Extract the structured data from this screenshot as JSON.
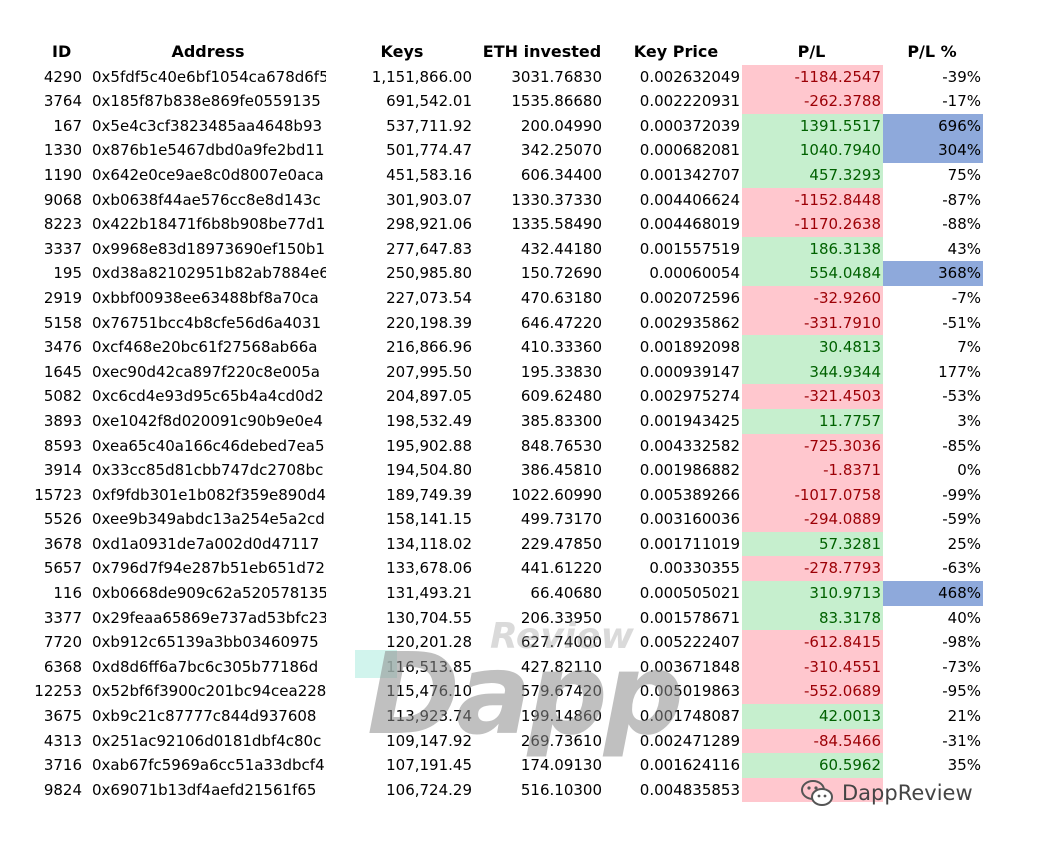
{
  "headers": {
    "id": "ID",
    "address": "Address",
    "keys": "Keys",
    "eth": "ETH invested",
    "price": "Key Price",
    "pl": "P/L",
    "plpct": "P/L %"
  },
  "rows": [
    {
      "id": "4290",
      "address": "0x5fdf5c40e6bf1054ca678d6f5",
      "keys": "1,151,866.00",
      "eth": "3031.76830",
      "price": "0.002632049",
      "pl": "-1184.2547",
      "pct": "-39%",
      "pl_sign": "neg",
      "pct_hi": false
    },
    {
      "id": "3764",
      "address": "0x185f87b838e869fe0559135",
      "keys": "691,542.01",
      "eth": "1535.86680",
      "price": "0.002220931",
      "pl": "-262.3788",
      "pct": "-17%",
      "pl_sign": "neg",
      "pct_hi": false
    },
    {
      "id": "167",
      "address": "0x5e4c3cf3823485aa4648b93",
      "keys": "537,711.92",
      "eth": "200.04990",
      "price": "0.000372039",
      "pl": "1391.5517",
      "pct": "696%",
      "pl_sign": "pos",
      "pct_hi": true
    },
    {
      "id": "1330",
      "address": "0x876b1e5467dbd0a9fe2bd11",
      "keys": "501,774.47",
      "eth": "342.25070",
      "price": "0.000682081",
      "pl": "1040.7940",
      "pct": "304%",
      "pl_sign": "pos",
      "pct_hi": true
    },
    {
      "id": "1190",
      "address": "0x642e0ce9ae8c0d8007e0aca",
      "keys": "451,583.16",
      "eth": "606.34400",
      "price": "0.001342707",
      "pl": "457.3293",
      "pct": "75%",
      "pl_sign": "pos",
      "pct_hi": false
    },
    {
      "id": "9068",
      "address": "0xb0638f44ae576cc8e8d143c",
      "keys": "301,903.07",
      "eth": "1330.37330",
      "price": "0.004406624",
      "pl": "-1152.8448",
      "pct": "-87%",
      "pl_sign": "neg",
      "pct_hi": false
    },
    {
      "id": "8223",
      "address": "0x422b18471f6b8b908be77d1",
      "keys": "298,921.06",
      "eth": "1335.58490",
      "price": "0.004468019",
      "pl": "-1170.2638",
      "pct": "-88%",
      "pl_sign": "neg",
      "pct_hi": false
    },
    {
      "id": "3337",
      "address": "0x9968e83d18973690ef150b1",
      "keys": "277,647.83",
      "eth": "432.44180",
      "price": "0.001557519",
      "pl": "186.3138",
      "pct": "43%",
      "pl_sign": "pos",
      "pct_hi": false
    },
    {
      "id": "195",
      "address": "0xd38a82102951b82ab7884e6",
      "keys": "250,985.80",
      "eth": "150.72690",
      "price": "0.00060054",
      "pl": "554.0484",
      "pct": "368%",
      "pl_sign": "pos",
      "pct_hi": true
    },
    {
      "id": "2919",
      "address": "0xbbf00938ee63488bf8a70ca",
      "keys": "227,073.54",
      "eth": "470.63180",
      "price": "0.002072596",
      "pl": "-32.9260",
      "pct": "-7%",
      "pl_sign": "neg",
      "pct_hi": false
    },
    {
      "id": "5158",
      "address": "0x76751bcc4b8cfe56d6a4031",
      "keys": "220,198.39",
      "eth": "646.47220",
      "price": "0.002935862",
      "pl": "-331.7910",
      "pct": "-51%",
      "pl_sign": "neg",
      "pct_hi": false
    },
    {
      "id": "3476",
      "address": "0xcf468e20bc61f27568ab66a",
      "keys": "216,866.96",
      "eth": "410.33360",
      "price": "0.001892098",
      "pl": "30.4813",
      "pct": "7%",
      "pl_sign": "pos",
      "pct_hi": false
    },
    {
      "id": "1645",
      "address": "0xec90d42ca897f220c8e005a",
      "keys": "207,995.50",
      "eth": "195.33830",
      "price": "0.000939147",
      "pl": "344.9344",
      "pct": "177%",
      "pl_sign": "pos",
      "pct_hi": false
    },
    {
      "id": "5082",
      "address": "0xc6cd4e93d95c65b4a4cd0d2",
      "keys": "204,897.05",
      "eth": "609.62480",
      "price": "0.002975274",
      "pl": "-321.4503",
      "pct": "-53%",
      "pl_sign": "neg",
      "pct_hi": false
    },
    {
      "id": "3893",
      "address": "0xe1042f8d020091c90b9e0e4",
      "keys": "198,532.49",
      "eth": "385.83300",
      "price": "0.001943425",
      "pl": "11.7757",
      "pct": "3%",
      "pl_sign": "pos",
      "pct_hi": false
    },
    {
      "id": "8593",
      "address": "0xea65c40a166c46debed7ea5",
      "keys": "195,902.88",
      "eth": "848.76530",
      "price": "0.004332582",
      "pl": "-725.3036",
      "pct": "-85%",
      "pl_sign": "neg",
      "pct_hi": false
    },
    {
      "id": "3914",
      "address": "0x33cc85d81cbb747dc2708bc",
      "keys": "194,504.80",
      "eth": "386.45810",
      "price": "0.001986882",
      "pl": "-1.8371",
      "pct": "0%",
      "pl_sign": "neg",
      "pct_hi": false
    },
    {
      "id": "15723",
      "address": "0xf9fdb301e1b082f359e890d4",
      "keys": "189,749.39",
      "eth": "1022.60990",
      "price": "0.005389266",
      "pl": "-1017.0758",
      "pct": "-99%",
      "pl_sign": "neg",
      "pct_hi": false
    },
    {
      "id": "5526",
      "address": "0xee9b349abdc13a254e5a2cd",
      "keys": "158,141.15",
      "eth": "499.73170",
      "price": "0.003160036",
      "pl": "-294.0889",
      "pct": "-59%",
      "pl_sign": "neg",
      "pct_hi": false
    },
    {
      "id": "3678",
      "address": "0xd1a0931de7a002d0d47117",
      "keys": "134,118.02",
      "eth": "229.47850",
      "price": "0.001711019",
      "pl": "57.3281",
      "pct": "25%",
      "pl_sign": "pos",
      "pct_hi": false
    },
    {
      "id": "5657",
      "address": "0x796d7f94e287b51eb651d72",
      "keys": "133,678.06",
      "eth": "441.61220",
      "price": "0.00330355",
      "pl": "-278.7793",
      "pct": "-63%",
      "pl_sign": "neg",
      "pct_hi": false
    },
    {
      "id": "116",
      "address": "0xb0668de909c62a520578135",
      "keys": "131,493.21",
      "eth": "66.40680",
      "price": "0.000505021",
      "pl": "310.9713",
      "pct": "468%",
      "pl_sign": "pos",
      "pct_hi": true
    },
    {
      "id": "3377",
      "address": "0x29feaa65869e737ad53bfc23",
      "keys": "130,704.55",
      "eth": "206.33950",
      "price": "0.001578671",
      "pl": "83.3178",
      "pct": "40%",
      "pl_sign": "pos",
      "pct_hi": false
    },
    {
      "id": "7720",
      "address": "0xb912c65139a3bb03460975",
      "keys": "120,201.28",
      "eth": "627.74000",
      "price": "0.005222407",
      "pl": "-612.8415",
      "pct": "-98%",
      "pl_sign": "neg",
      "pct_hi": false
    },
    {
      "id": "6368",
      "address": "0xd8d6ff6a7bc6c305b77186d",
      "keys": "116,513.85",
      "eth": "427.82110",
      "price": "0.003671848",
      "pl": "-310.4551",
      "pct": "-73%",
      "pl_sign": "neg",
      "pct_hi": false
    },
    {
      "id": "12253",
      "address": "0x52bf6f3900c201bc94cea228",
      "keys": "115,476.10",
      "eth": "579.67420",
      "price": "0.005019863",
      "pl": "-552.0689",
      "pct": "-95%",
      "pl_sign": "neg",
      "pct_hi": false
    },
    {
      "id": "3675",
      "address": "0xb9c21c87777c844d937608",
      "keys": "113,923.74",
      "eth": "199.14860",
      "price": "0.001748087",
      "pl": "42.0013",
      "pct": "21%",
      "pl_sign": "pos",
      "pct_hi": false
    },
    {
      "id": "4313",
      "address": "0x251ac92106d0181dbf4c80c",
      "keys": "109,147.92",
      "eth": "269.73610",
      "price": "0.002471289",
      "pl": "-84.5466",
      "pct": "-31%",
      "pl_sign": "neg",
      "pct_hi": false
    },
    {
      "id": "3716",
      "address": "0xab67fc5969a6cc51a33dbcf4",
      "keys": "107,191.45",
      "eth": "174.09130",
      "price": "0.001624116",
      "pl": "60.5962",
      "pct": "35%",
      "pl_sign": "pos",
      "pct_hi": false
    },
    {
      "id": "9824",
      "address": "0x69071b13df4aefd21561f65",
      "keys": "106,724.29",
      "eth": "516.10300",
      "price": "0.004835853",
      "pl": "",
      "pct": "",
      "pl_sign": "neg",
      "pct_hi": false
    }
  ],
  "watermark": {
    "big": "Dapp",
    "small": "Review"
  },
  "wechat": {
    "name": "DappReview",
    "icon": "wechat-icon"
  },
  "colors": {
    "negative_fill": "#ffc7ce",
    "negative_text": "#9c0006",
    "positive_fill": "#c6efce",
    "positive_text": "#006100",
    "highlight": "#8ea9db"
  }
}
